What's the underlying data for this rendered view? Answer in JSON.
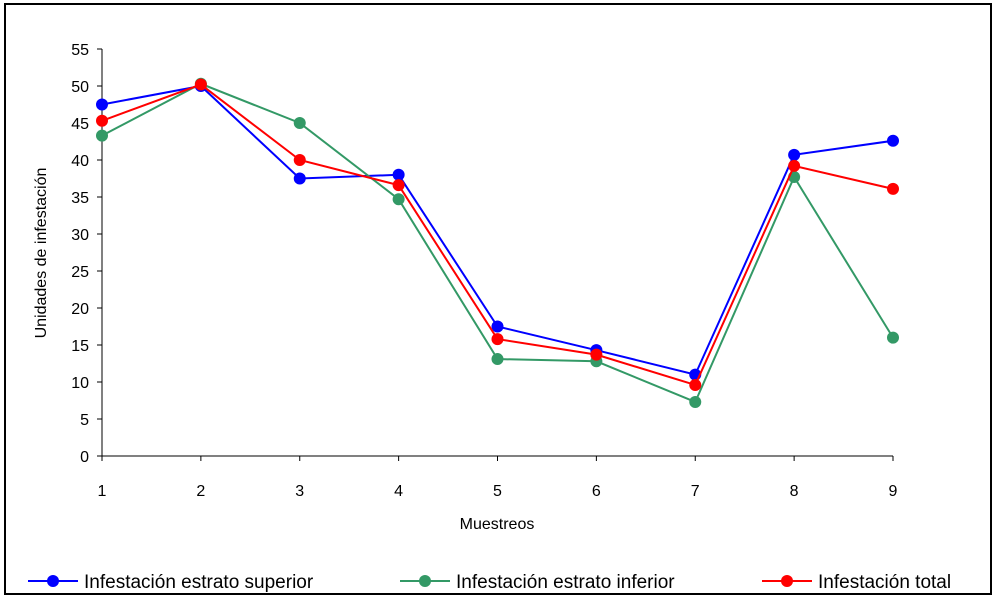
{
  "chart_data": {
    "type": "line",
    "xlabel": "Muestreos",
    "ylabel": "Unidades de infestación",
    "categories": [
      "1",
      "2",
      "3",
      "4",
      "5",
      "6",
      "7",
      "8",
      "9"
    ],
    "ylim": [
      0,
      55
    ],
    "yticks": [
      "0",
      "5",
      "10",
      "15",
      "20",
      "25",
      "30",
      "35",
      "40",
      "45",
      "50",
      "55"
    ],
    "grid": false,
    "legend_position": "bottom",
    "series": [
      {
        "name": "Infestación estrato superior",
        "color": "#0000ff",
        "values": [
          47.5,
          50.0,
          37.5,
          38.0,
          17.5,
          14.3,
          11.0,
          40.7,
          42.6
        ]
      },
      {
        "name": "Infestación estrato inferior",
        "color": "#339966",
        "values": [
          43.3,
          50.3,
          45.0,
          34.7,
          13.1,
          12.8,
          7.3,
          37.7,
          16.0
        ]
      },
      {
        "name": "Infestación total",
        "color": "#ff0000",
        "values": [
          45.3,
          50.2,
          40.0,
          36.6,
          15.8,
          13.7,
          9.6,
          39.2,
          36.1
        ]
      }
    ]
  }
}
